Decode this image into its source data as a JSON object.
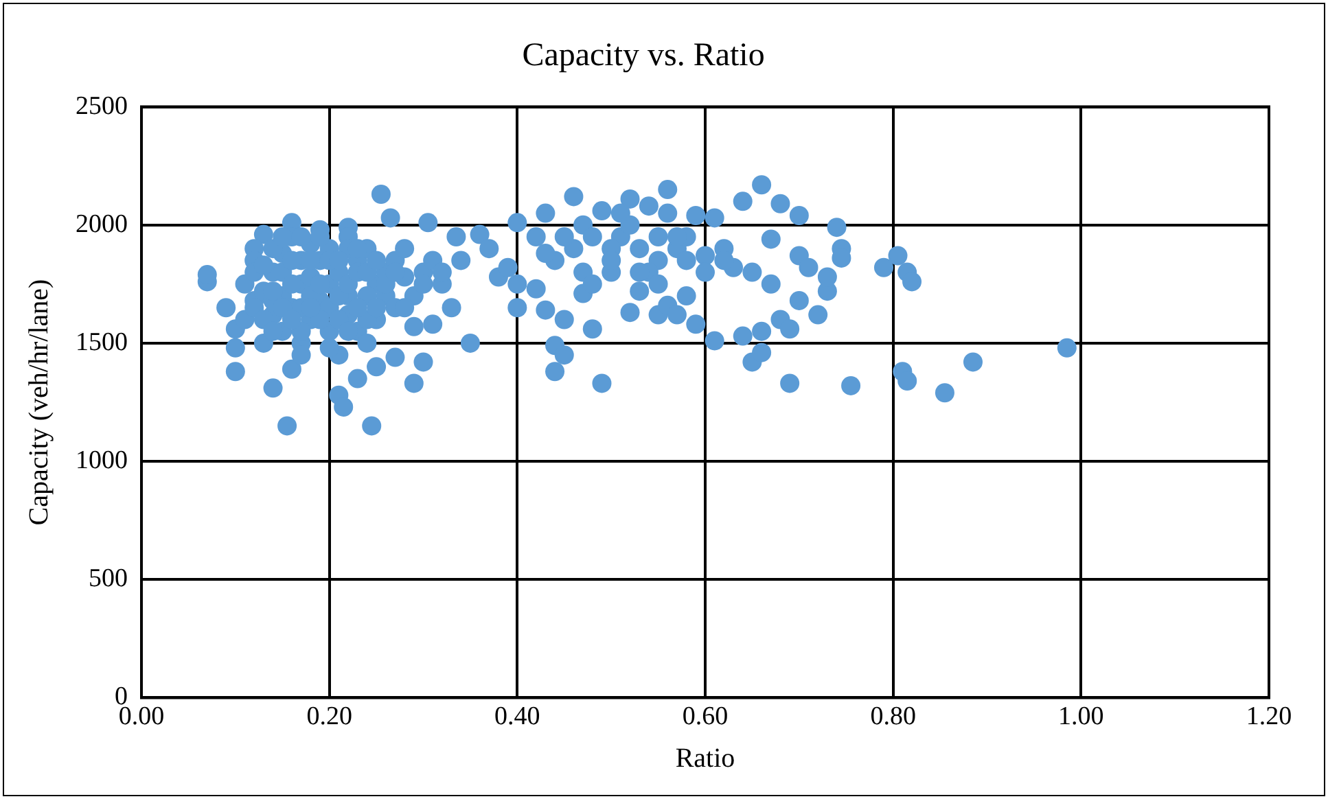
{
  "chart_data": {
    "type": "scatter",
    "title": "Capacity vs. Ratio",
    "xlabel": "Ratio",
    "ylabel": "Capacity (veh/hr/lane)",
    "xlim": [
      0,
      1.2
    ],
    "xticks": [
      {
        "value": 0,
        "label": "0.00"
      },
      {
        "value": 0.2,
        "label": "0.20"
      },
      {
        "value": 0.4,
        "label": "0.40"
      },
      {
        "value": 0.6,
        "label": "0.60"
      },
      {
        "value": 0.8,
        "label": "0.80"
      },
      {
        "value": 1,
        "label": "1.00"
      },
      {
        "value": 1.2,
        "label": "1.20"
      }
    ],
    "ylim": [
      0,
      2500
    ],
    "yticks": [
      0,
      500,
      1000,
      1500,
      2000,
      2500
    ],
    "grid": true,
    "legend": false,
    "marker": "circle",
    "series": [
      {
        "color": "#5b9bd5",
        "x": [
          0.07,
          0.07,
          0.09,
          0.1,
          0.1,
          0.1,
          0.14,
          0.155,
          0.16,
          0.21,
          0.215,
          0.245,
          0.23,
          0.255,
          0.265,
          0.16,
          0.13,
          0.12,
          0.22,
          0.25,
          0.27,
          0.29,
          0.3,
          0.305,
          0.29,
          0.31,
          0.33,
          0.335,
          0.35,
          0.11,
          0.11,
          0.12,
          0.12,
          0.13,
          0.13,
          0.14,
          0.14,
          0.15,
          0.15,
          0.15,
          0.16,
          0.16,
          0.17,
          0.17,
          0.17,
          0.18,
          0.18,
          0.18,
          0.19,
          0.19,
          0.2,
          0.2,
          0.2,
          0.21,
          0.21,
          0.22,
          0.22,
          0.22,
          0.23,
          0.23,
          0.24,
          0.25,
          0.25,
          0.26,
          0.26,
          0.27,
          0.27,
          0.28,
          0.28,
          0.29,
          0.3,
          0.31,
          0.32,
          0.14,
          0.19,
          0.24,
          0.2,
          0.17,
          0.36,
          0.37,
          0.38,
          0.39,
          0.4,
          0.4,
          0.4,
          0.42,
          0.43,
          0.43,
          0.44,
          0.44,
          0.45,
          0.45,
          0.46,
          0.47,
          0.47,
          0.48,
          0.49,
          0.49,
          0.5,
          0.51,
          0.52,
          0.52,
          0.53,
          0.54,
          0.55,
          0.55,
          0.56,
          0.56,
          0.57,
          0.58,
          0.58,
          0.59,
          0.59,
          0.6,
          0.61,
          0.61,
          0.62,
          0.63,
          0.64,
          0.64,
          0.65,
          0.65,
          0.66,
          0.66,
          0.66,
          0.67,
          0.67,
          0.68,
          0.68,
          0.69,
          0.69,
          0.7,
          0.7,
          0.7,
          0.71,
          0.72,
          0.73,
          0.73,
          0.74,
          0.745,
          0.745,
          0.755,
          0.79,
          0.805,
          0.81,
          0.815,
          0.815,
          0.82,
          0.855,
          0.885,
          0.985,
          0.42,
          0.44,
          0.46,
          0.48,
          0.5,
          0.53,
          0.55,
          0.57,
          0.45,
          0.52,
          0.58,
          0.47,
          0.43,
          0.54,
          0.56,
          0.51,
          0.12,
          0.13,
          0.14,
          0.15,
          0.16,
          0.17,
          0.18,
          0.19,
          0.2,
          0.21,
          0.22,
          0.23,
          0.24,
          0.25,
          0.26,
          0.12,
          0.13,
          0.14,
          0.15,
          0.16,
          0.17,
          0.18,
          0.19,
          0.2,
          0.21,
          0.22,
          0.23,
          0.24,
          0.25,
          0.27,
          0.14,
          0.15,
          0.16,
          0.17,
          0.18,
          0.19,
          0.21,
          0.22,
          0.23,
          0.24,
          0.28,
          0.3,
          0.32,
          0.34,
          0.48,
          0.5,
          0.53,
          0.55,
          0.57,
          0.6,
          0.62
        ],
        "values": [
          1760,
          1790,
          1650,
          1380,
          1480,
          1560,
          1310,
          1150,
          1390,
          1280,
          1230,
          1150,
          1350,
          2130,
          2030,
          2010,
          1960,
          1900,
          1990,
          1400,
          1440,
          1330,
          1420,
          2010,
          1570,
          1580,
          1650,
          1950,
          1500,
          1600,
          1750,
          1680,
          1850,
          1500,
          1720,
          1620,
          1800,
          1550,
          1700,
          1880,
          1650,
          1950,
          1500,
          1750,
          1850,
          1600,
          1780,
          1920,
          1680,
          1850,
          1550,
          1750,
          1900,
          1450,
          1800,
          1620,
          1700,
          1950,
          1550,
          1850,
          1900,
          1750,
          1600,
          1800,
          1700,
          1850,
          1650,
          1900,
          1780,
          1700,
          1800,
          1850,
          1750,
          1680,
          1980,
          1600,
          1480,
          1450,
          1960,
          1900,
          1780,
          1820,
          1650,
          1750,
          2010,
          1730,
          1640,
          2050,
          1380,
          1490,
          1450,
          1600,
          2120,
          1710,
          2000,
          1560,
          1330,
          2060,
          1800,
          1950,
          2110,
          1630,
          1720,
          2080,
          1620,
          1850,
          2150,
          1660,
          1620,
          1700,
          1950,
          1580,
          2040,
          1870,
          1510,
          2030,
          1900,
          1820,
          1530,
          2100,
          1420,
          1800,
          2170,
          1460,
          1550,
          1940,
          1750,
          1600,
          2090,
          1330,
          1560,
          2040,
          1870,
          1680,
          1820,
          1620,
          1720,
          1780,
          1990,
          1900,
          1860,
          1320,
          1820,
          1870,
          1380,
          1340,
          1800,
          1760,
          1290,
          1420,
          1480,
          1950,
          1850,
          1900,
          1950,
          1900,
          1900,
          1950,
          1900,
          1950,
          2000,
          1850,
          1800,
          1880,
          1800,
          2050,
          2050,
          1650,
          1600,
          1720,
          1800,
          1750,
          1650,
          1700,
          1750,
          1650,
          1700,
          1750,
          1800,
          1700,
          1650,
          1750,
          1800,
          1830,
          1900,
          1650,
          1850,
          1550,
          1850,
          1600,
          1850,
          1600,
          1900,
          1650,
          1800,
          1850,
          1800,
          1550,
          1950,
          1600,
          1950,
          1650,
          1950,
          1850,
          1550,
          1900,
          1500,
          1650,
          1750,
          1800,
          1850,
          1750,
          1850,
          1800,
          1750,
          1950,
          1800,
          1850
        ]
      }
    ]
  }
}
